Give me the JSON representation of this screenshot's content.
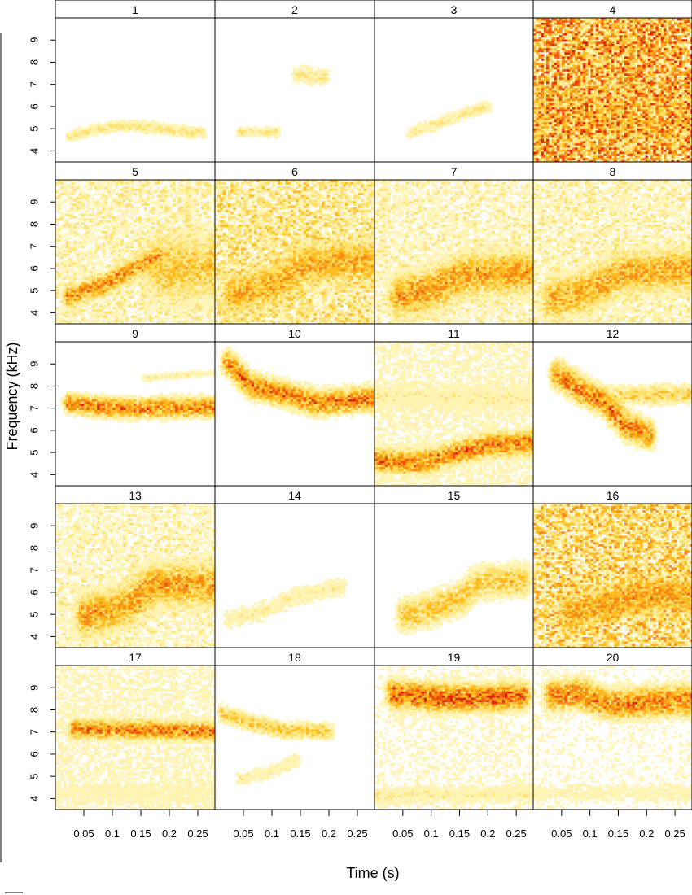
{
  "chart_data": {
    "type": "heatmap",
    "title": "",
    "xlabel": "Time (s)",
    "ylabel": "Frequency (kHz)",
    "xlim": [
      0,
      0.28
    ],
    "ylim": [
      3.5,
      10
    ],
    "x_ticks": [
      "0.05",
      "0.1",
      "0.15",
      "0.2",
      "0.25"
    ],
    "y_ticks": [
      "4",
      "5",
      "6",
      "7",
      "8",
      "9"
    ],
    "panels": [
      {
        "label": "1",
        "noise": 0.0,
        "traces": [
          {
            "pts": [
              [
                0.02,
                4.6
              ],
              [
                0.06,
                4.9
              ],
              [
                0.1,
                5.05
              ],
              [
                0.16,
                5.05
              ],
              [
                0.2,
                4.9
              ],
              [
                0.26,
                4.75
              ]
            ],
            "w": 0.22,
            "i": 0.45
          }
        ]
      },
      {
        "label": "2",
        "noise": 0.0,
        "traces": [
          {
            "pts": [
              [
                0.04,
                4.8
              ],
              [
                0.11,
                4.8
              ]
            ],
            "w": 0.18,
            "i": 0.45
          },
          {
            "pts": [
              [
                0.14,
                7.4
              ],
              [
                0.19,
                7.3
              ]
            ],
            "w": 0.35,
            "i": 0.4
          }
        ]
      },
      {
        "label": "3",
        "noise": 0.0,
        "traces": [
          {
            "pts": [
              [
                0.06,
                4.8
              ],
              [
                0.11,
                5.2
              ],
              [
                0.15,
                5.6
              ],
              [
                0.2,
                6.0
              ]
            ],
            "w": 0.25,
            "i": 0.4
          }
        ]
      },
      {
        "label": "4",
        "noise": 0.95,
        "traces": [
          {
            "pts": [
              [
                0.0,
                5.5
              ],
              [
                0.28,
                5.5
              ]
            ],
            "w": 1.6,
            "i": 0.5
          },
          {
            "pts": [
              [
                0.12,
                7.5
              ],
              [
                0.18,
                7.5
              ]
            ],
            "w": 3.0,
            "i": 0.4
          }
        ]
      },
      {
        "label": "5",
        "noise": 0.4,
        "traces": [
          {
            "pts": [
              [
                0.02,
                4.7
              ],
              [
                0.08,
                5.2
              ],
              [
                0.13,
                5.9
              ],
              [
                0.18,
                6.5
              ]
            ],
            "w": 0.4,
            "i": 0.8
          },
          {
            "pts": [
              [
                0.18,
                6.0
              ],
              [
                0.28,
                6.0
              ]
            ],
            "w": 1.3,
            "i": 0.6
          },
          {
            "pts": [
              [
                0.23,
                7.5
              ],
              [
                0.23,
                9.5
              ]
            ],
            "w": 0.3,
            "i": 0.45
          }
        ]
      },
      {
        "label": "6",
        "noise": 0.55,
        "traces": [
          {
            "pts": [
              [
                0.03,
                4.8
              ],
              [
                0.1,
                5.2
              ],
              [
                0.16,
                6.2
              ],
              [
                0.28,
                6.3
              ]
            ],
            "w": 0.8,
            "i": 0.7
          }
        ]
      },
      {
        "label": "7",
        "noise": 0.38,
        "traces": [
          {
            "pts": [
              [
                0.04,
                4.7
              ],
              [
                0.1,
                5.0
              ],
              [
                0.16,
                5.7
              ],
              [
                0.28,
                5.8
              ]
            ],
            "w": 0.8,
            "i": 0.75
          }
        ]
      },
      {
        "label": "8",
        "noise": 0.4,
        "traces": [
          {
            "pts": [
              [
                0.03,
                4.6
              ],
              [
                0.1,
                5.0
              ],
              [
                0.16,
                5.8
              ],
              [
                0.28,
                5.9
              ]
            ],
            "w": 0.8,
            "i": 0.7
          }
        ]
      },
      {
        "label": "9",
        "noise": 0.1,
        "traces": [
          {
            "pts": [
              [
                0.02,
                7.2
              ],
              [
                0.08,
                7.0
              ],
              [
                0.14,
                6.95
              ],
              [
                0.2,
                7.0
              ],
              [
                0.28,
                7.0
              ]
            ],
            "w": 0.35,
            "i": 0.85
          },
          {
            "pts": [
              [
                0.15,
                8.3
              ],
              [
                0.28,
                8.6
              ]
            ],
            "w": 0.15,
            "i": 0.35
          }
        ]
      },
      {
        "label": "10",
        "noise": 0.15,
        "traces": [
          {
            "pts": [
              [
                0.02,
                9.0
              ],
              [
                0.06,
                8.0
              ],
              [
                0.12,
                7.6
              ],
              [
                0.18,
                7.2
              ],
              [
                0.28,
                7.4
              ]
            ],
            "w": 0.45,
            "i": 0.85
          }
        ]
      },
      {
        "label": "11",
        "noise": 0.35,
        "traces": [
          {
            "pts": [
              [
                0.0,
                4.6
              ],
              [
                0.08,
                4.5
              ],
              [
                0.15,
                5.0
              ],
              [
                0.2,
                5.3
              ],
              [
                0.28,
                5.4
              ]
            ],
            "w": 0.45,
            "i": 0.85
          },
          {
            "pts": [
              [
                0.0,
                7.5
              ],
              [
                0.28,
                7.4
              ]
            ],
            "w": 0.6,
            "i": 0.35
          }
        ]
      },
      {
        "label": "12",
        "noise": 0.12,
        "traces": [
          {
            "pts": [
              [
                0.04,
                8.5
              ],
              [
                0.08,
                7.8
              ],
              [
                0.12,
                7.3
              ],
              [
                0.16,
                6.2
              ],
              [
                0.2,
                5.8
              ]
            ],
            "w": 0.5,
            "i": 0.85
          },
          {
            "pts": [
              [
                0.12,
                7.5
              ],
              [
                0.28,
                7.6
              ]
            ],
            "w": 0.35,
            "i": 0.55
          }
        ]
      },
      {
        "label": "13",
        "noise": 0.38,
        "traces": [
          {
            "pts": [
              [
                0.05,
                4.9
              ],
              [
                0.12,
                5.3
              ],
              [
                0.17,
                6.3
              ],
              [
                0.28,
                6.3
              ]
            ],
            "w": 0.8,
            "i": 0.75
          }
        ]
      },
      {
        "label": "14",
        "noise": 0.08,
        "traces": [
          {
            "pts": [
              [
                0.02,
                4.7
              ],
              [
                0.08,
                5.1
              ],
              [
                0.14,
                5.8
              ],
              [
                0.22,
                6.2
              ]
            ],
            "w": 0.4,
            "i": 0.35
          }
        ]
      },
      {
        "label": "15",
        "noise": 0.15,
        "traces": [
          {
            "pts": [
              [
                0.05,
                4.9
              ],
              [
                0.1,
                5.2
              ],
              [
                0.15,
                5.7
              ],
              [
                0.18,
                6.4
              ],
              [
                0.26,
                6.5
              ]
            ],
            "w": 0.6,
            "i": 0.6
          }
        ]
      },
      {
        "label": "16",
        "noise": 0.7,
        "traces": [
          {
            "pts": [
              [
                0.06,
                5.0
              ],
              [
                0.12,
                5.3
              ],
              [
                0.17,
                5.8
              ],
              [
                0.28,
                5.8
              ]
            ],
            "w": 0.7,
            "i": 0.75
          }
        ]
      },
      {
        "label": "17",
        "noise": 0.35,
        "traces": [
          {
            "pts": [
              [
                0.03,
                7.1
              ],
              [
                0.28,
                7.0
              ]
            ],
            "w": 0.35,
            "i": 0.85
          },
          {
            "pts": [
              [
                0.0,
                4.2
              ],
              [
                0.28,
                4.2
              ]
            ],
            "w": 0.5,
            "i": 0.3
          }
        ]
      },
      {
        "label": "18",
        "noise": 0.05,
        "traces": [
          {
            "pts": [
              [
                0.01,
                7.8
              ],
              [
                0.07,
                7.3
              ],
              [
                0.12,
                7.05
              ],
              [
                0.2,
                7.0
              ]
            ],
            "w": 0.3,
            "i": 0.6
          },
          {
            "pts": [
              [
                0.04,
                4.8
              ],
              [
                0.1,
                5.2
              ],
              [
                0.14,
                5.7
              ]
            ],
            "w": 0.3,
            "i": 0.35
          }
        ]
      },
      {
        "label": "19",
        "noise": 0.25,
        "traces": [
          {
            "pts": [
              [
                0.03,
                8.7
              ],
              [
                0.1,
                8.5
              ],
              [
                0.2,
                8.5
              ],
              [
                0.26,
                8.6
              ]
            ],
            "w": 0.5,
            "i": 0.95
          },
          {
            "pts": [
              [
                0.0,
                4.1
              ],
              [
                0.28,
                4.2
              ]
            ],
            "w": 0.4,
            "i": 0.35
          }
        ]
      },
      {
        "label": "20",
        "noise": 0.22,
        "traces": [
          {
            "pts": [
              [
                0.03,
                8.6
              ],
              [
                0.08,
                8.7
              ],
              [
                0.13,
                8.2
              ],
              [
                0.2,
                8.3
              ],
              [
                0.28,
                8.4
              ]
            ],
            "w": 0.55,
            "i": 0.85
          },
          {
            "pts": [
              [
                0.0,
                4.2
              ],
              [
                0.28,
                4.2
              ]
            ],
            "w": 0.4,
            "i": 0.3
          }
        ]
      }
    ]
  }
}
